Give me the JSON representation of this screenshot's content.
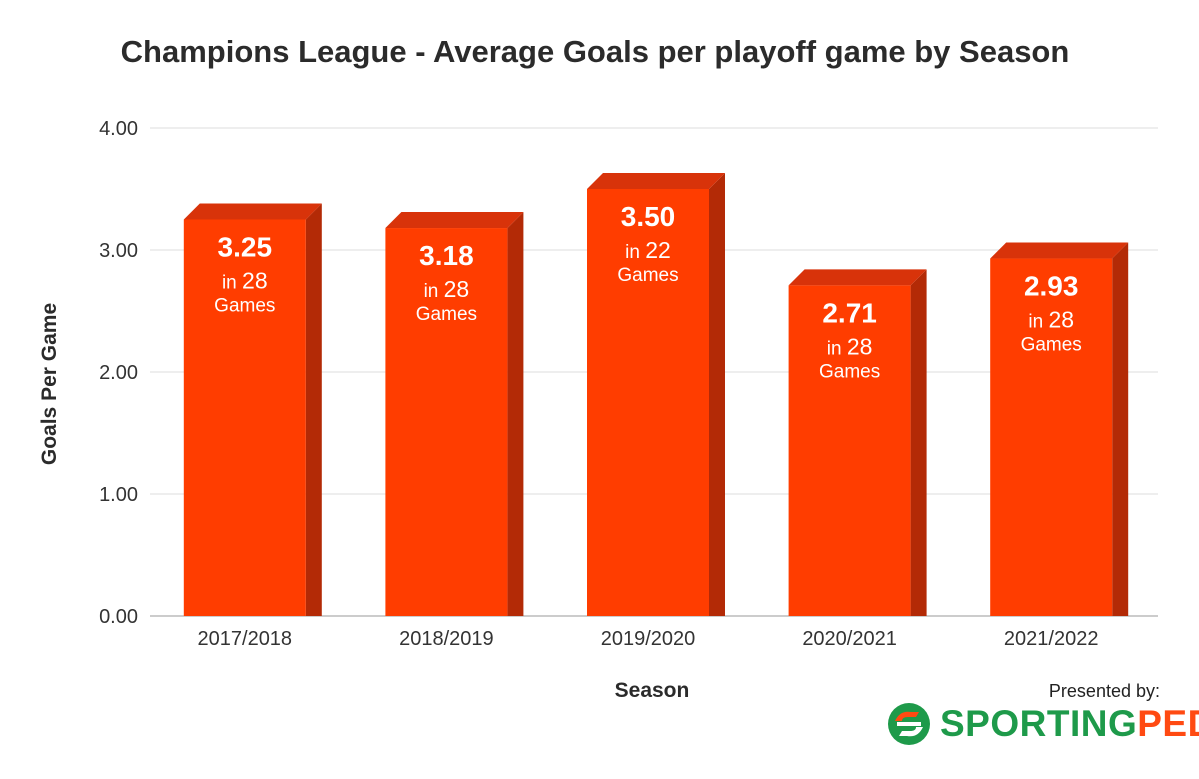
{
  "chart_data": {
    "type": "bar",
    "title": "Champions League - Average Goals per playoff game by Season",
    "xlabel": "Season",
    "ylabel": "Goals Per Game",
    "categories": [
      "2017/2018",
      "2018/2019",
      "2019/2020",
      "2020/2021",
      "2021/2022"
    ],
    "values": [
      3.25,
      3.18,
      3.5,
      2.71,
      2.93
    ],
    "value_labels": [
      "3.25",
      "3.18",
      "3.50",
      "2.71",
      "2.93"
    ],
    "games": [
      "28",
      "28",
      "22",
      "28",
      "28"
    ],
    "games_prefix": "in",
    "games_suffix": "Games",
    "ylim": [
      0,
      4
    ],
    "yticks": [
      "0.00",
      "1.00",
      "2.00",
      "3.00",
      "4.00"
    ],
    "grid": true,
    "bar_color": "#ff3d00",
    "bar_side_color": "#b32a06",
    "bar_top_color": "#d8330a"
  },
  "footer": {
    "presented_by": "Presented by:",
    "brand_part1": "SPORTING",
    "brand_part2": "PEDIA",
    "brand_green": "#1e9a4a",
    "brand_orange": "#ff4a12"
  }
}
